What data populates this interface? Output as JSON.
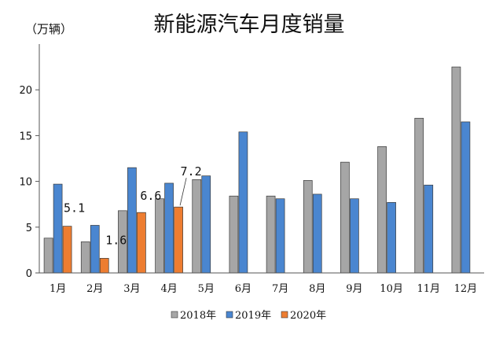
{
  "chart_data": {
    "type": "bar",
    "title": "新能源汽车月度销量",
    "ylabel": "（万辆）",
    "ylim": [
      0,
      25
    ],
    "yticks": [
      0,
      5,
      10,
      15,
      20
    ],
    "categories": [
      "1月",
      "2月",
      "3月",
      "4月",
      "5月",
      "6月",
      "7月",
      "8月",
      "9月",
      "10月",
      "11月",
      "12月"
    ],
    "series": [
      {
        "name": "2018年",
        "color": "#a6a6a6",
        "values": [
          3.8,
          3.4,
          6.8,
          8.1,
          10.2,
          8.4,
          8.4,
          10.1,
          12.1,
          13.8,
          16.9,
          22.5
        ]
      },
      {
        "name": "2019年",
        "color": "#4a86d0",
        "values": [
          9.7,
          5.2,
          11.5,
          9.8,
          10.6,
          15.4,
          8.1,
          8.6,
          8.1,
          7.7,
          9.6,
          16.5
        ]
      },
      {
        "name": "2020年",
        "color": "#ed7d31",
        "values": [
          5.1,
          1.6,
          6.6,
          7.2,
          null,
          null,
          null,
          null,
          null,
          null,
          null,
          null
        ]
      }
    ],
    "data_labels": [
      {
        "series": 2,
        "index": 0,
        "text": "5.1"
      },
      {
        "series": 2,
        "index": 1,
        "text": "1.6"
      },
      {
        "series": 2,
        "index": 2,
        "text": "6.6"
      },
      {
        "series": 2,
        "index": 3,
        "text": "7.2"
      }
    ],
    "grid": false,
    "legend": "bottom"
  }
}
